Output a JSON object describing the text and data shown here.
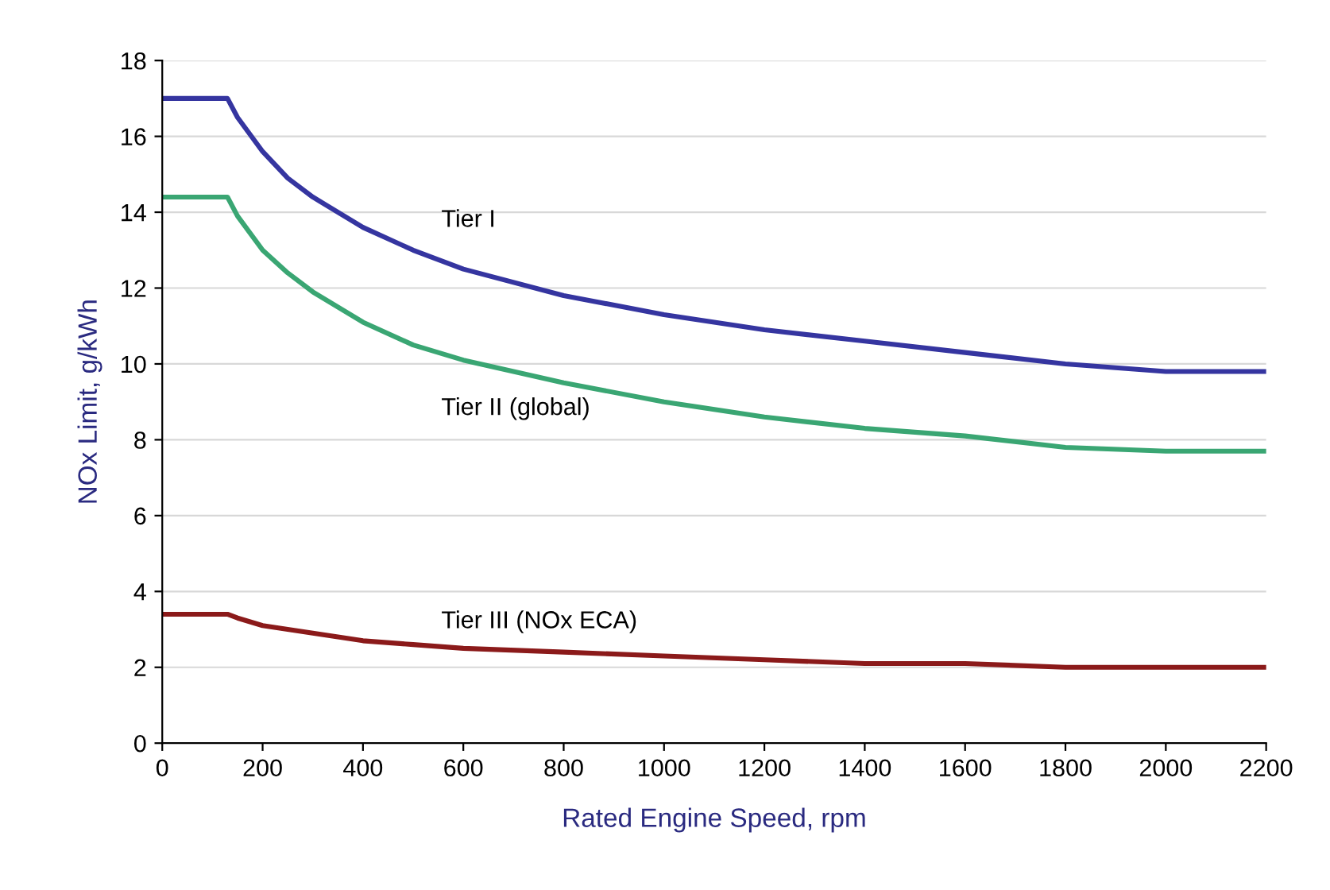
{
  "chart_data": {
    "type": "line",
    "xlabel": "Rated Engine Speed, rpm",
    "ylabel": "NOx Limit, g/kWh",
    "x": [
      0,
      130,
      150,
      200,
      250,
      300,
      400,
      500,
      600,
      800,
      1000,
      1200,
      1400,
      1600,
      1800,
      2000,
      2200
    ],
    "series": [
      {
        "name": "Tier I",
        "color": "#3535a0",
        "values": [
          17,
          17,
          16.5,
          15.6,
          14.9,
          14.4,
          13.6,
          13.0,
          12.5,
          11.8,
          11.3,
          10.9,
          10.6,
          10.3,
          10.0,
          9.8,
          9.8
        ]
      },
      {
        "name": "Tier II (global)",
        "color": "#3aa673",
        "values": [
          14.4,
          14.4,
          13.9,
          13.0,
          12.4,
          11.9,
          11.1,
          10.5,
          10.1,
          9.5,
          9.0,
          8.6,
          8.3,
          8.1,
          7.8,
          7.7,
          7.7
        ]
      },
      {
        "name": "Tier III (NOx ECA)",
        "color": "#8b1a1a",
        "values": [
          3.4,
          3.4,
          3.3,
          3.1,
          3.0,
          2.9,
          2.7,
          2.6,
          2.5,
          2.4,
          2.3,
          2.2,
          2.1,
          2.1,
          2.0,
          2.0,
          2.0
        ]
      }
    ],
    "xlim": [
      0,
      2200
    ],
    "xticks": [
      0,
      200,
      400,
      600,
      800,
      1000,
      1200,
      1400,
      1600,
      1800,
      2000,
      2200
    ],
    "ylim": [
      0,
      18
    ],
    "yticks": [
      0,
      2,
      4,
      6,
      8,
      10,
      12,
      14,
      16,
      18
    ],
    "grid": "y",
    "legend": false,
    "marker": "none",
    "line_style": "solid"
  }
}
